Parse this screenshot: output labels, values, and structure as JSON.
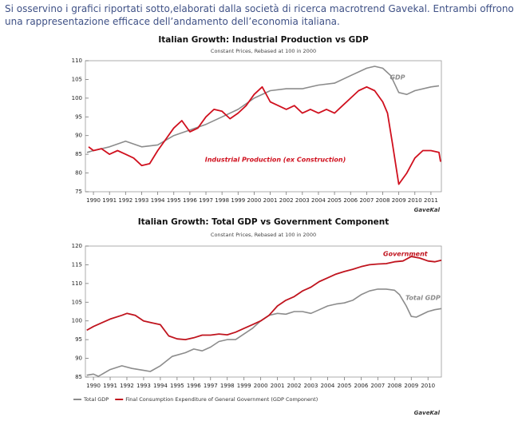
{
  "text": "Si osservino i grafici riportati sotto,elaborati dalla società di ricerca macrotrend Gavekal. Entrambi offrono una rappresentazione efficace dell’andamento dell’economia italiana.",
  "chart_data": [
    {
      "type": "line",
      "title": "Italian Growth: Industrial Production vs GDP",
      "subtitle": "Constant Prices, Rebased at 100 in 2000",
      "source": "GaveKal",
      "xlim": [
        1989.5,
        2011.65
      ],
      "xticks": [
        1990,
        1991,
        1992,
        1993,
        1994,
        1995,
        1996,
        1997,
        1998,
        1999,
        2000,
        2001,
        2002,
        2003,
        2004,
        2005,
        2006,
        2007,
        2008,
        2009,
        2010,
        2011
      ],
      "ylim": [
        75,
        110
      ],
      "yticks": [
        75,
        80,
        85,
        90,
        95,
        100,
        105,
        110
      ],
      "series": [
        {
          "name": "GDP",
          "color": "#8c8c8c",
          "x": [
            1989.6,
            1990,
            1991,
            1992,
            1993,
            1994,
            1995,
            1996,
            1997,
            1998,
            1999,
            2000,
            2001,
            2002,
            2003,
            2004,
            2005,
            2006,
            2007,
            2007.5,
            2008,
            2008.5,
            2009,
            2009.5,
            2010,
            2011,
            2011.5
          ],
          "values": [
            85.5,
            86,
            87,
            88.5,
            87,
            87.5,
            90,
            91.5,
            93,
            95,
            97,
            100,
            102,
            102.5,
            102.5,
            103.5,
            104,
            106,
            108,
            108.5,
            108,
            106,
            101.5,
            101,
            102,
            103,
            103.3
          ]
        },
        {
          "name": "Industrial Production (ex Construction)",
          "color": "#d0101e",
          "x": [
            1989.7,
            1990,
            1990.5,
            1991,
            1991.5,
            1992,
            1992.5,
            1993,
            1993.5,
            1994,
            1994.5,
            1995,
            1995.5,
            1996,
            1996.5,
            1997,
            1997.5,
            1998,
            1998.5,
            1999,
            1999.5,
            2000,
            2000.5,
            2001,
            2001.5,
            2002,
            2002.5,
            2003,
            2003.5,
            2004,
            2004.5,
            2005,
            2005.5,
            2006,
            2006.5,
            2007,
            2007.5,
            2008,
            2008.3,
            2008.6,
            2009,
            2009.5,
            2010,
            2010.5,
            2011,
            2011.5,
            2011.6
          ],
          "values": [
            87,
            86,
            86.5,
            85,
            86,
            85,
            84,
            82,
            82.5,
            86,
            89,
            92,
            94,
            91,
            92,
            95,
            97,
            96.5,
            94.5,
            96,
            98,
            101,
            103,
            99,
            98,
            97,
            98,
            96,
            97,
            96,
            97,
            96,
            98,
            100,
            102,
            103,
            102,
            99,
            96,
            88,
            77,
            80,
            84,
            86,
            86,
            85.5,
            83
          ]
        }
      ]
    },
    {
      "type": "line",
      "title": "Italian Growth: Total GDP vs Government Component",
      "subtitle": "Constant Prices, Rebased at 100 in 2000",
      "source": "GaveKal",
      "annotations": [
        "Government",
        "Total GDP"
      ],
      "xlim": [
        1989.52,
        2010.8
      ],
      "xticks": [
        1990,
        1991,
        1992,
        1993,
        1994,
        1995,
        1996,
        1997,
        1998,
        1999,
        2000,
        2001,
        2002,
        2003,
        2004,
        2005,
        2006,
        2007,
        2008,
        2009,
        2010
      ],
      "ylim": [
        85,
        120
      ],
      "yticks": [
        85,
        90,
        95,
        100,
        105,
        110,
        115,
        120
      ],
      "series": [
        {
          "name": "Total GDP",
          "color": "#8c8c8c",
          "x": [
            1989.6,
            1990,
            1990.3,
            1991,
            1991.7,
            1992.3,
            1993,
            1993.4,
            1994,
            1994.7,
            1995.5,
            1996,
            1996.5,
            1997,
            1997.5,
            1998,
            1998.5,
            1999,
            1999.5,
            2000,
            2000.5,
            2001,
            2001.5,
            2002,
            2002.5,
            2003,
            2003.5,
            2004,
            2004.5,
            2005,
            2005.5,
            2006,
            2006.5,
            2007,
            2007.5,
            2008,
            2008.3,
            2008.7,
            2009,
            2009.3,
            2010,
            2010.4,
            2010.8
          ],
          "values": [
            85.5,
            85.8,
            85.2,
            87,
            88,
            87.3,
            86.8,
            86.5,
            88,
            90.5,
            91.5,
            92.5,
            92,
            93,
            94.5,
            95,
            95,
            96.5,
            98,
            100,
            101.5,
            102,
            101.8,
            102.5,
            102.5,
            102,
            103,
            104,
            104.5,
            104.8,
            105.5,
            107,
            108,
            108.5,
            108.5,
            108.2,
            107,
            104,
            101.2,
            101,
            102.5,
            103,
            103.3
          ]
        },
        {
          "name": "Final Consumption Expenditure of General Government (GDP Component)",
          "color": "#c0141e",
          "x": [
            1989.6,
            1990,
            1990.5,
            1991,
            1991.7,
            1992,
            1992.5,
            1993,
            1993.5,
            1994,
            1994.5,
            1995,
            1995.5,
            1996,
            1996.5,
            1997,
            1997.5,
            1998,
            1998.5,
            1999,
            1999.5,
            2000,
            2000.5,
            2001,
            2001.5,
            2002,
            2002.5,
            2003,
            2003.5,
            2004,
            2004.5,
            2005,
            2005.5,
            2006,
            2006.5,
            2007,
            2007.5,
            2008,
            2008.5,
            2009,
            2009.5,
            2010,
            2010.4,
            2010.8
          ],
          "values": [
            97.5,
            98.5,
            99.5,
            100.5,
            101.5,
            102,
            101.5,
            100,
            99.5,
            99,
            96,
            95.2,
            95,
            95.5,
            96.2,
            96.2,
            96.5,
            96.3,
            97,
            98,
            99,
            100,
            101.5,
            104,
            105.5,
            106.5,
            108,
            109,
            110.5,
            111.5,
            112.5,
            113.2,
            113.8,
            114.5,
            115,
            115.2,
            115.3,
            115.8,
            116,
            117.2,
            116.8,
            116,
            115.8,
            116.2
          ]
        }
      ]
    }
  ]
}
